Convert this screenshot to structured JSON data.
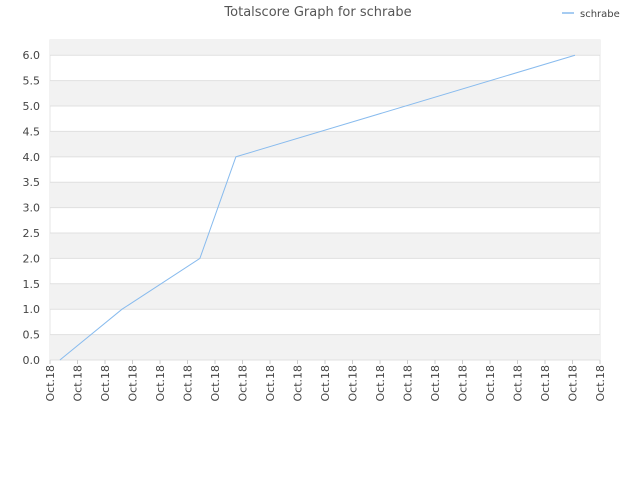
{
  "chart_data": {
    "type": "line",
    "title": "Totalscore Graph for schrabe",
    "xlim": [
      0,
      20
    ],
    "xticks": [
      {
        "value": 0,
        "label": "Oct.18"
      },
      {
        "value": 1,
        "label": "Oct.18"
      },
      {
        "value": 2,
        "label": "Oct.18"
      },
      {
        "value": 3,
        "label": "Oct.18"
      },
      {
        "value": 4,
        "label": "Oct.18"
      },
      {
        "value": 5,
        "label": "Oct.18"
      },
      {
        "value": 6,
        "label": "Oct.18"
      },
      {
        "value": 7,
        "label": "Oct.18"
      },
      {
        "value": 8,
        "label": "Oct.18"
      },
      {
        "value": 9,
        "label": "Oct.18"
      },
      {
        "value": 10,
        "label": "Oct.18"
      },
      {
        "value": 11,
        "label": "Oct.18"
      },
      {
        "value": 12,
        "label": "Oct.18"
      },
      {
        "value": 13,
        "label": "Oct.18"
      },
      {
        "value": 14,
        "label": "Oct.18"
      },
      {
        "value": 15,
        "label": "Oct.18"
      },
      {
        "value": 16,
        "label": "Oct.18"
      },
      {
        "value": 17,
        "label": "Oct.18"
      },
      {
        "value": 18,
        "label": "Oct.18"
      },
      {
        "value": 19,
        "label": "Oct.18"
      },
      {
        "value": 20,
        "label": "Oct.18"
      }
    ],
    "ylim": [
      0,
      6.3
    ],
    "yticks": [
      {
        "value": 0,
        "label": "0.0"
      },
      0.5,
      {
        "value": 1,
        "label": "1.0"
      },
      1.5,
      {
        "value": 2,
        "label": "2.0"
      },
      2.5,
      {
        "value": 3,
        "label": "3.0"
      },
      3.5,
      {
        "value": 4,
        "label": "4.0"
      },
      4.5,
      {
        "value": 5,
        "label": "5.0"
      },
      5.5,
      {
        "value": 6,
        "label": "6.0"
      }
    ],
    "x": [
      0.36,
      2.62,
      5.45,
      6.76,
      19.09
    ],
    "series": [
      {
        "name": "schrabe",
        "color": "#88bbee",
        "values": [
          0,
          1,
          2,
          4,
          6
        ]
      }
    ],
    "legend": "top-right",
    "grid": true
  }
}
